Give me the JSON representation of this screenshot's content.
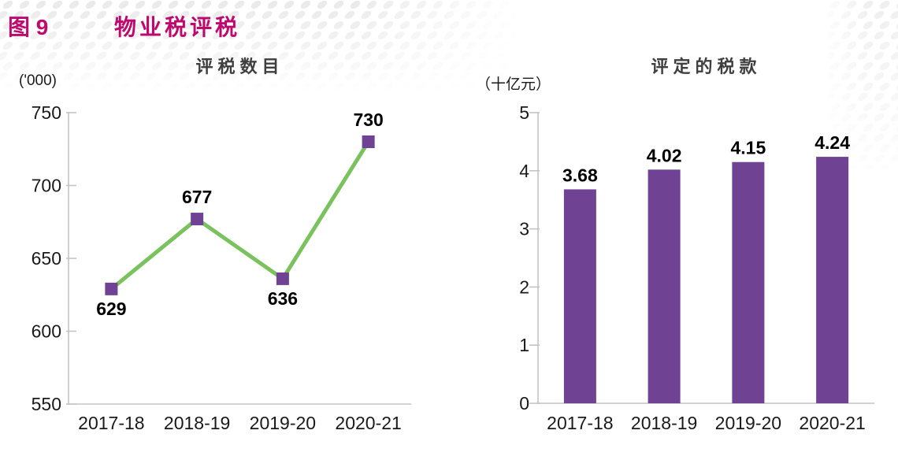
{
  "header": {
    "figure_label": "图 9",
    "title": "物业税评税"
  },
  "colors": {
    "accent": "#BE0A6E",
    "line_green": "#79C25D",
    "purple": "#6F4294",
    "axis_gray": "#C4C4C4",
    "title_gray": "#3F3F3F",
    "text_black": "#1A1A1A",
    "dot_gray": "#EAEAEA"
  },
  "chart_data": [
    {
      "type": "line",
      "title": "评税数目",
      "unit": "('000)",
      "categories": [
        "2017-18",
        "2018-19",
        "2019-20",
        "2020-21"
      ],
      "values": [
        629,
        677,
        636,
        730
      ],
      "value_labels": [
        "629",
        "677",
        "636",
        "730"
      ],
      "label_positions": [
        "below",
        "above",
        "below",
        "above"
      ],
      "ylim": [
        550,
        750
      ],
      "yticks": [
        550,
        600,
        650,
        700,
        750
      ],
      "grid": false,
      "legend": "none",
      "line_color": "#79C25D",
      "marker": "square",
      "marker_color": "#6F4294"
    },
    {
      "type": "bar",
      "title": "评定的税款",
      "unit": "（十亿元）",
      "categories": [
        "2017-18",
        "2018-19",
        "2019-20",
        "2020-21"
      ],
      "values": [
        3.68,
        4.02,
        4.15,
        4.24
      ],
      "value_labels": [
        "3.68",
        "4.02",
        "4.15",
        "4.24"
      ],
      "ylim": [
        0,
        5
      ],
      "yticks": [
        0,
        1,
        2,
        3,
        4,
        5
      ],
      "grid": false,
      "legend": "none",
      "bar_color": "#6F4294"
    }
  ]
}
